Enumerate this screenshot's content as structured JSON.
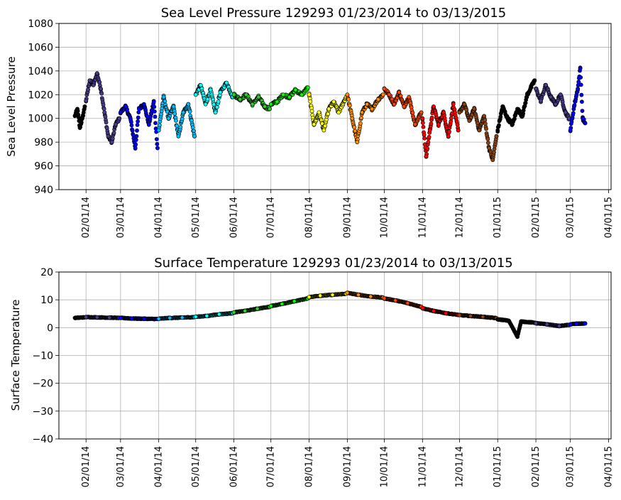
{
  "chart_data": [
    {
      "type": "scatter",
      "title": "Sea Level Pressure 129293  01/23/2014 to 03/13/2015",
      "xlabel": "",
      "ylabel": "Sea Level Pressure",
      "xlim": [
        "2014-01-10",
        "2015-04-03"
      ],
      "ylim": [
        940,
        1080
      ],
      "yticks": [
        940,
        960,
        980,
        1000,
        1020,
        1040,
        1060,
        1080
      ],
      "xticks": [
        "2014-02-01",
        "2014-03-01",
        "2014-04-01",
        "2014-05-01",
        "2014-06-01",
        "2014-07-01",
        "2014-08-01",
        "2014-09-01",
        "2014-10-01",
        "2014-11-01",
        "2014-12-01",
        "2015-01-01",
        "2015-02-01",
        "2015-03-01",
        "2015-04-01"
      ],
      "xtick_labels": [
        "02/01/14",
        "03/01/14",
        "04/01/14",
        "05/01/14",
        "06/01/14",
        "07/01/14",
        "08/01/14",
        "09/01/14",
        "10/01/14",
        "11/01/14",
        "12/01/14",
        "01/01/15",
        "02/01/15",
        "03/01/15",
        "04/01/15"
      ],
      "grid": true,
      "series": [
        {
          "color": "#000000",
          "x": [
            "2014-01-23",
            "2014-01-25",
            "2014-01-27",
            "2014-01-29",
            "2014-01-31"
          ],
          "values": [
            1002,
            1008,
            992,
            1000,
            1010
          ]
        },
        {
          "color": "#483d8b",
          "x": [
            "2014-02-01",
            "2014-02-04",
            "2014-02-07",
            "2014-02-10",
            "2014-02-13",
            "2014-02-16",
            "2014-02-19",
            "2014-02-22",
            "2014-02-25",
            "2014-02-28"
          ],
          "values": [
            1015,
            1032,
            1028,
            1038,
            1025,
            1005,
            985,
            980,
            995,
            1000
          ]
        },
        {
          "color": "#0000ff",
          "x": [
            "2014-03-01",
            "2014-03-05",
            "2014-03-09",
            "2014-03-13",
            "2014-03-16",
            "2014-03-20",
            "2014-03-24",
            "2014-03-28",
            "2014-03-31"
          ],
          "values": [
            1005,
            1010,
            1000,
            975,
            1008,
            1012,
            995,
            1014,
            975
          ]
        },
        {
          "color": "#00bfff",
          "x": [
            "2014-04-01",
            "2014-04-05",
            "2014-04-09",
            "2014-04-13",
            "2014-04-17",
            "2014-04-21",
            "2014-04-25",
            "2014-04-30"
          ],
          "values": [
            990,
            1018,
            1000,
            1010,
            985,
            1005,
            1012,
            985
          ]
        },
        {
          "color": "#00ffff",
          "x": [
            "2014-05-01",
            "2014-05-05",
            "2014-05-09",
            "2014-05-13",
            "2014-05-17",
            "2014-05-21",
            "2014-05-26",
            "2014-05-31"
          ],
          "values": [
            1020,
            1028,
            1012,
            1024,
            1005,
            1022,
            1030,
            1018
          ]
        },
        {
          "color": "#32cd32",
          "x": [
            "2014-06-01",
            "2014-06-06",
            "2014-06-11",
            "2014-06-16",
            "2014-06-21",
            "2014-06-26",
            "2014-06-30"
          ],
          "values": [
            1020,
            1016,
            1020,
            1012,
            1018,
            1010,
            1008
          ]
        },
        {
          "color": "#00ff00",
          "x": [
            "2014-07-01",
            "2014-07-06",
            "2014-07-11",
            "2014-07-16",
            "2014-07-21",
            "2014-07-26",
            "2014-07-31"
          ],
          "values": [
            1012,
            1014,
            1020,
            1018,
            1024,
            1020,
            1026
          ]
        },
        {
          "color": "#ffff00",
          "x": [
            "2014-08-01",
            "2014-08-05",
            "2014-08-09",
            "2014-08-13",
            "2014-08-17",
            "2014-08-21",
            "2014-08-25",
            "2014-08-31"
          ],
          "values": [
            1020,
            995,
            1005,
            990,
            1008,
            1014,
            1005,
            1018
          ]
        },
        {
          "color": "#ff8c00",
          "x": [
            "2014-09-01",
            "2014-09-05",
            "2014-09-09",
            "2014-09-13",
            "2014-09-17",
            "2014-09-21",
            "2014-09-26",
            "2014-09-30"
          ],
          "values": [
            1020,
            1000,
            980,
            1005,
            1012,
            1008,
            1016,
            1020
          ]
        },
        {
          "color": "#ff4500",
          "x": [
            "2014-10-01",
            "2014-10-05",
            "2014-10-09",
            "2014-10-13",
            "2014-10-17",
            "2014-10-21",
            "2014-10-26",
            "2014-10-31"
          ],
          "values": [
            1025,
            1020,
            1012,
            1022,
            1010,
            1018,
            995,
            1005
          ]
        },
        {
          "color": "#ff0000",
          "x": [
            "2014-11-01",
            "2014-11-04",
            "2014-11-07",
            "2014-11-10",
            "2014-11-14",
            "2014-11-18",
            "2014-11-22",
            "2014-11-26",
            "2014-11-30"
          ],
          "values": [
            1000,
            968,
            990,
            1010,
            995,
            1005,
            985,
            1012,
            990
          ]
        },
        {
          "color": "#8b4513",
          "x": [
            "2014-12-01",
            "2014-12-05",
            "2014-12-09",
            "2014-12-13",
            "2014-12-17",
            "2014-12-21",
            "2014-12-25",
            "2014-12-28",
            "2014-12-31"
          ],
          "values": [
            1005,
            1012,
            998,
            1008,
            990,
            1002,
            975,
            965,
            985
          ]
        },
        {
          "color": "#000000",
          "x": [
            "2015-01-01",
            "2015-01-05",
            "2015-01-09",
            "2015-01-13",
            "2015-01-17",
            "2015-01-21",
            "2015-01-25",
            "2015-01-31"
          ],
          "values": [
            990,
            1010,
            1000,
            995,
            1008,
            1002,
            1020,
            1032
          ]
        },
        {
          "color": "#483d8b",
          "x": [
            "2015-02-01",
            "2015-02-05",
            "2015-02-09",
            "2015-02-13",
            "2015-02-17",
            "2015-02-21",
            "2015-02-25",
            "2015-02-28"
          ],
          "values": [
            1025,
            1015,
            1028,
            1018,
            1012,
            1020,
            1005,
            1000
          ]
        },
        {
          "color": "#0000ff",
          "x": [
            "2015-03-01",
            "2015-03-04",
            "2015-03-07",
            "2015-03-09",
            "2015-03-11",
            "2015-03-13"
          ],
          "values": [
            990,
            1010,
            1025,
            1042,
            1000,
            996
          ]
        }
      ]
    },
    {
      "type": "scatter",
      "title": "Surface Temperature 129293  01/23/2014 to 03/13/2015",
      "xlabel": "",
      "ylabel": "Surface Temperature",
      "xlim": [
        "2014-01-10",
        "2015-04-03"
      ],
      "ylim": [
        -40,
        20
      ],
      "yticks": [
        -40,
        -30,
        -20,
        -10,
        0,
        10,
        20
      ],
      "xticks": [
        "2014-02-01",
        "2014-03-01",
        "2014-04-01",
        "2014-05-01",
        "2014-06-01",
        "2014-07-01",
        "2014-08-01",
        "2014-09-01",
        "2014-10-01",
        "2014-11-01",
        "2014-12-01",
        "2015-01-01",
        "2015-02-01",
        "2015-03-01",
        "2015-04-01"
      ],
      "xtick_labels": [
        "02/01/14",
        "03/01/14",
        "04/01/14",
        "05/01/14",
        "06/01/14",
        "07/01/14",
        "08/01/14",
        "09/01/14",
        "10/01/14",
        "11/01/14",
        "12/01/14",
        "01/01/15",
        "02/01/15",
        "03/01/15",
        "04/01/15"
      ],
      "grid": true,
      "series": [
        {
          "color": "#000000",
          "x": [
            "2014-01-23",
            "2014-01-27",
            "2014-01-31"
          ],
          "values": [
            3.5,
            3.6,
            3.7
          ]
        },
        {
          "color": "#483d8b",
          "x": [
            "2014-02-01",
            "2014-02-10",
            "2014-02-20",
            "2014-02-28"
          ],
          "values": [
            3.8,
            3.7,
            3.6,
            3.5
          ]
        },
        {
          "color": "#0000ff",
          "x": [
            "2014-03-01",
            "2014-03-10",
            "2014-03-20",
            "2014-03-31"
          ],
          "values": [
            3.5,
            3.3,
            3.2,
            3.1
          ]
        },
        {
          "color": "#00bfff",
          "x": [
            "2014-04-01",
            "2014-04-10",
            "2014-04-20",
            "2014-04-30"
          ],
          "values": [
            3.2,
            3.5,
            3.6,
            3.8
          ]
        },
        {
          "color": "#00ffff",
          "x": [
            "2014-05-01",
            "2014-05-10",
            "2014-05-20",
            "2014-05-31"
          ],
          "values": [
            3.9,
            4.2,
            4.8,
            5.2
          ]
        },
        {
          "color": "#32cd32",
          "x": [
            "2014-06-01",
            "2014-06-10",
            "2014-06-20",
            "2014-06-30"
          ],
          "values": [
            5.5,
            6.0,
            6.8,
            7.5
          ]
        },
        {
          "color": "#00ff00",
          "x": [
            "2014-07-01",
            "2014-07-10",
            "2014-07-20",
            "2014-07-31"
          ],
          "values": [
            7.8,
            8.5,
            9.5,
            10.5
          ]
        },
        {
          "color": "#ffff00",
          "x": [
            "2014-08-01",
            "2014-08-10",
            "2014-08-20",
            "2014-08-31"
          ],
          "values": [
            11.0,
            11.5,
            11.8,
            12.2
          ]
        },
        {
          "color": "#ff8c00",
          "x": [
            "2014-09-01",
            "2014-09-10",
            "2014-09-20",
            "2014-09-30"
          ],
          "values": [
            12.5,
            11.8,
            11.2,
            10.8
          ]
        },
        {
          "color": "#ff4500",
          "x": [
            "2014-10-01",
            "2014-10-10",
            "2014-10-20",
            "2014-10-31"
          ],
          "values": [
            10.5,
            9.8,
            8.8,
            7.5
          ]
        },
        {
          "color": "#ff0000",
          "x": [
            "2014-11-01",
            "2014-11-10",
            "2014-11-20",
            "2014-11-30"
          ],
          "values": [
            7.0,
            6.0,
            5.2,
            4.6
          ]
        },
        {
          "color": "#8b4513",
          "x": [
            "2014-12-01",
            "2014-12-10",
            "2014-12-20",
            "2014-12-31"
          ],
          "values": [
            4.5,
            4.2,
            3.9,
            3.4
          ]
        },
        {
          "color": "#000000",
          "x": [
            "2015-01-01",
            "2015-01-10",
            "2015-01-17",
            "2015-01-20",
            "2015-01-31"
          ],
          "values": [
            3.0,
            2.5,
            -3.2,
            2.2,
            1.8
          ]
        },
        {
          "color": "#483d8b",
          "x": [
            "2015-02-01",
            "2015-02-10",
            "2015-02-20",
            "2015-02-28"
          ],
          "values": [
            1.6,
            1.2,
            0.6,
            1.0
          ]
        },
        {
          "color": "#0000ff",
          "x": [
            "2015-03-01",
            "2015-03-06",
            "2015-03-13"
          ],
          "values": [
            1.2,
            1.4,
            1.5
          ]
        }
      ]
    }
  ]
}
